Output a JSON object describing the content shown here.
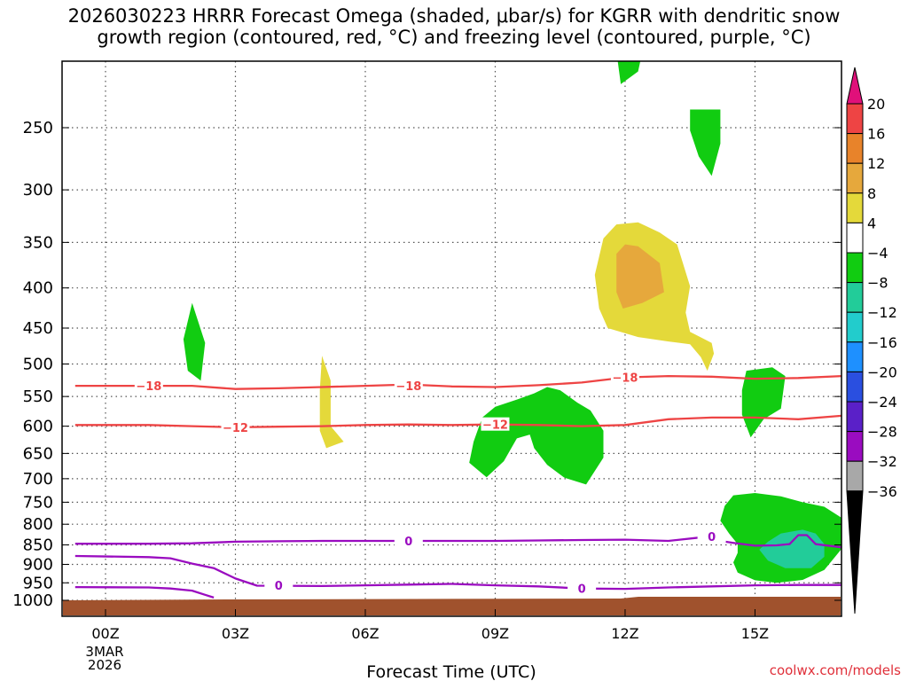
{
  "title_line1": "2026030223 HRRR Forecast Omega (shaded, μbar/s) for KGRR with dendritic snow",
  "title_line2": "growth region (contoured, red, °C) and freezing level (contoured, purple, °C)",
  "xlabel": "Forecast Time (UTC)",
  "date_label_line1": "3MAR",
  "date_label_line2": "2026",
  "watermark": "coolwx.com/models",
  "chart_data": {
    "type": "contour",
    "title": "2026030223 HRRR Forecast Omega (shaded, μbar/s) for KGRR with dendritic snow growth region (contoured, red, °C) and freezing level (contoured, purple, °C)",
    "xlabel": "Forecast Time (UTC)",
    "ylabel": "",
    "xlim": [
      -0.7,
      17
    ],
    "ylim_hpa": [
      200,
      1050
    ],
    "x_ticks": [
      {
        "x": 0,
        "label": "00Z"
      },
      {
        "x": 3,
        "label": "03Z"
      },
      {
        "x": 6,
        "label": "06Z"
      },
      {
        "x": 9,
        "label": "09Z"
      },
      {
        "x": 12,
        "label": "12Z"
      },
      {
        "x": 15,
        "label": "15Z"
      }
    ],
    "y_ticks": [
      250,
      300,
      350,
      400,
      450,
      500,
      550,
      600,
      650,
      700,
      750,
      800,
      850,
      900,
      950,
      1000
    ],
    "grid": true,
    "colorbar": {
      "unit": "μbar/s",
      "labels": [
        "20",
        "16",
        "12",
        "8",
        "4",
        "−4",
        "−8",
        "−12",
        "−16",
        "−20",
        "−24",
        "−28",
        "−32",
        "−36"
      ],
      "bins": [
        {
          "from": 16,
          "to": 20,
          "color": "#ee4444"
        },
        {
          "from": 12,
          "to": 16,
          "color": "#e8832a"
        },
        {
          "from": 8,
          "to": 12,
          "color": "#e6a83c"
        },
        {
          "from": 4,
          "to": 8,
          "color": "#e4d93a"
        },
        {
          "from": -4,
          "to": 4,
          "color": "#ffffff"
        },
        {
          "from": -8,
          "to": -4,
          "color": "#11cc11"
        },
        {
          "from": -12,
          "to": -8,
          "color": "#22cc99"
        },
        {
          "from": -16,
          "to": -12,
          "color": "#22cccc"
        },
        {
          "from": -20,
          "to": -16,
          "color": "#1e90ff"
        },
        {
          "from": -24,
          "to": -20,
          "color": "#2a4fe0"
        },
        {
          "from": -28,
          "to": -24,
          "color": "#5a20c8"
        },
        {
          "from": -32,
          "to": -28,
          "color": "#9a0cc0"
        },
        {
          "from": -36,
          "to": -32,
          "color": "#a8a8a8"
        }
      ],
      "top_arrow_color": "#e0107a",
      "bottom_arrow_color": "#000000"
    },
    "terrain_color": "#a0522d",
    "contours": [
      {
        "label": "−18",
        "color": "#ee4444",
        "points": [
          [
            -0.7,
            533
          ],
          [
            1,
            533
          ],
          [
            2,
            533
          ],
          [
            3,
            538
          ],
          [
            4,
            537
          ],
          [
            5,
            535
          ],
          [
            6,
            533
          ],
          [
            7,
            531
          ],
          [
            8,
            534
          ],
          [
            9,
            535
          ],
          [
            10,
            532
          ],
          [
            11,
            528
          ],
          [
            12,
            520
          ],
          [
            13,
            518
          ],
          [
            14,
            519
          ],
          [
            15,
            522
          ],
          [
            16,
            521
          ],
          [
            17,
            518
          ]
        ],
        "labels_at": [
          [
            1,
            533
          ],
          [
            7,
            533
          ],
          [
            12,
            520
          ]
        ]
      },
      {
        "label": "−12",
        "color": "#ee4444",
        "points": [
          [
            -0.7,
            598
          ],
          [
            1,
            598
          ],
          [
            2,
            600
          ],
          [
            3,
            602
          ],
          [
            4,
            601
          ],
          [
            5,
            600
          ],
          [
            6,
            598
          ],
          [
            7,
            597
          ],
          [
            8,
            598
          ],
          [
            9,
            597
          ],
          [
            10,
            598
          ],
          [
            11,
            600
          ],
          [
            12,
            598
          ],
          [
            13,
            588
          ],
          [
            14,
            585
          ],
          [
            15,
            585
          ],
          [
            16,
            588
          ],
          [
            17,
            582
          ]
        ],
        "labels_at": [
          [
            3,
            602
          ],
          [
            9,
            597
          ]
        ]
      },
      {
        "label": "0",
        "color": "#9a0cc0",
        "points": [
          [
            -0.7,
            847
          ],
          [
            1,
            847
          ],
          [
            2,
            846
          ],
          [
            3,
            842
          ],
          [
            4,
            841
          ],
          [
            5,
            840
          ],
          [
            6,
            840
          ],
          [
            7,
            840
          ],
          [
            8,
            840
          ],
          [
            9,
            840
          ],
          [
            10,
            839
          ],
          [
            11,
            838
          ],
          [
            12,
            837
          ],
          [
            13,
            840
          ],
          [
            13.7,
            832
          ],
          [
            14.5,
            845
          ],
          [
            15,
            852
          ],
          [
            15.5,
            851
          ],
          [
            15.8,
            848
          ],
          [
            16,
            826
          ],
          [
            16.2,
            826
          ],
          [
            16.4,
            848
          ],
          [
            17,
            856
          ]
        ],
        "labels_at": [
          [
            7,
            840
          ],
          [
            14,
            829
          ]
        ]
      },
      {
        "label": "0",
        "color": "#9a0cc0",
        "points": [
          [
            -0.7,
            878
          ],
          [
            1,
            881
          ],
          [
            1.5,
            884
          ],
          [
            2,
            898
          ],
          [
            2.5,
            910
          ],
          [
            3,
            938
          ],
          [
            3.5,
            958
          ],
          [
            5,
            959
          ],
          [
            6,
            957
          ],
          [
            7,
            955
          ],
          [
            8,
            953
          ],
          [
            9,
            957
          ],
          [
            10,
            960
          ],
          [
            11,
            966
          ],
          [
            12,
            967
          ],
          [
            13,
            963
          ],
          [
            14,
            960
          ],
          [
            15,
            957
          ],
          [
            16,
            956
          ],
          [
            17,
            956
          ]
        ],
        "labels_at": [
          [
            4,
            957
          ],
          [
            11,
            966
          ]
        ]
      },
      {
        "label": "0",
        "color": "#9a0cc0",
        "points": [
          [
            -0.7,
            962
          ],
          [
            1,
            963
          ],
          [
            1.5,
            966
          ],
          [
            2,
            972
          ],
          [
            2.3,
            984
          ],
          [
            2.5,
            992
          ]
        ],
        "labels_at": []
      }
    ],
    "shaded_regions": [
      {
        "bin": "-8 to -4",
        "color": "#11cc11",
        "points": [
          [
            2,
            418
          ],
          [
            2.3,
            470
          ],
          [
            2.2,
            525
          ],
          [
            1.9,
            510
          ],
          [
            1.8,
            465
          ]
        ]
      },
      {
        "bin": "4 to 8",
        "color": "#e4d93a",
        "points": [
          [
            5,
            488
          ],
          [
            5.2,
            525
          ],
          [
            5.2,
            600
          ],
          [
            5.5,
            628
          ],
          [
            5.1,
            640
          ],
          [
            4.95,
            608
          ],
          [
            4.95,
            540
          ]
        ]
      },
      {
        "bin": "-8 to -4",
        "color": "#11cc11",
        "points": [
          [
            11.8,
            200
          ],
          [
            12.4,
            200
          ],
          [
            12.3,
            212
          ],
          [
            11.9,
            220
          ]
        ]
      },
      {
        "bin": "-8 to -4",
        "color": "#11cc11",
        "points": [
          [
            13.5,
            237
          ],
          [
            14.2,
            237
          ],
          [
            14.2,
            262
          ],
          [
            14,
            288
          ],
          [
            13.7,
            272
          ],
          [
            13.5,
            252
          ]
        ]
      },
      {
        "bin": "4 to 8",
        "color": "#e4d93a",
        "points": [
          [
            11.5,
            346
          ],
          [
            11.8,
            332
          ],
          [
            12.3,
            330
          ],
          [
            12.8,
            340
          ],
          [
            13.2,
            352
          ],
          [
            13.5,
            398
          ],
          [
            13.4,
            430
          ],
          [
            13.5,
            455
          ],
          [
            14,
            470
          ],
          [
            14.05,
            485
          ],
          [
            13.9,
            510
          ],
          [
            13.75,
            490
          ],
          [
            13.5,
            472
          ],
          [
            13,
            468
          ],
          [
            12.3,
            462
          ],
          [
            11.6,
            450
          ],
          [
            11.4,
            425
          ],
          [
            11.3,
            385
          ]
        ]
      },
      {
        "bin": "8 to 12",
        "color": "#e6a83c",
        "points": [
          [
            11.8,
            362
          ],
          [
            12,
            352
          ],
          [
            12.3,
            354
          ],
          [
            12.8,
            372
          ],
          [
            12.9,
            405
          ],
          [
            12.4,
            418
          ],
          [
            11.95,
            425
          ],
          [
            11.8,
            405
          ]
        ]
      },
      {
        "bin": "-8 to -4",
        "color": "#11cc11",
        "points": [
          [
            9,
            567
          ],
          [
            9.5,
            555
          ],
          [
            9.9,
            545
          ],
          [
            10.2,
            535
          ],
          [
            10.5,
            540
          ],
          [
            10.9,
            560
          ],
          [
            11.2,
            573
          ],
          [
            11.5,
            608
          ],
          [
            11.5,
            658
          ],
          [
            11.1,
            712
          ],
          [
            10.6,
            698
          ],
          [
            10.2,
            672
          ],
          [
            9.9,
            640
          ],
          [
            9.8,
            615
          ],
          [
            9.5,
            622
          ],
          [
            9.2,
            665
          ],
          [
            8.8,
            697
          ],
          [
            8.4,
            668
          ],
          [
            8.5,
            628
          ],
          [
            8.7,
            585
          ]
        ]
      },
      {
        "bin": "-8 to -4",
        "color": "#11cc11",
        "points": [
          [
            14.8,
            510
          ],
          [
            15.4,
            505
          ],
          [
            15.7,
            518
          ],
          [
            15.6,
            570
          ],
          [
            15.2,
            588
          ],
          [
            14.9,
            620
          ],
          [
            14.7,
            580
          ],
          [
            14.7,
            540
          ]
        ]
      },
      {
        "bin": "-8 to -4",
        "color": "#11cc11",
        "points": [
          [
            14.5,
            735
          ],
          [
            15,
            730
          ],
          [
            15.6,
            737
          ],
          [
            16.1,
            750
          ],
          [
            16.6,
            760
          ],
          [
            17,
            785
          ],
          [
            17,
            860
          ],
          [
            16.6,
            915
          ],
          [
            16.1,
            942
          ],
          [
            15.5,
            950
          ],
          [
            15,
            943
          ],
          [
            14.6,
            922
          ],
          [
            14.5,
            895
          ],
          [
            14.6,
            870
          ],
          [
            14.6,
            848
          ],
          [
            14.4,
            822
          ],
          [
            14.2,
            792
          ],
          [
            14.3,
            758
          ]
        ]
      },
      {
        "bin": "-12 to -8",
        "color": "#22cc99",
        "points": [
          [
            15.3,
            842
          ],
          [
            15.6,
            822
          ],
          [
            16.1,
            813
          ],
          [
            16.4,
            822
          ],
          [
            16.6,
            848
          ],
          [
            16.6,
            880
          ],
          [
            16.3,
            910
          ],
          [
            15.7,
            910
          ],
          [
            15.3,
            890
          ],
          [
            15.1,
            862
          ]
        ]
      }
    ]
  }
}
